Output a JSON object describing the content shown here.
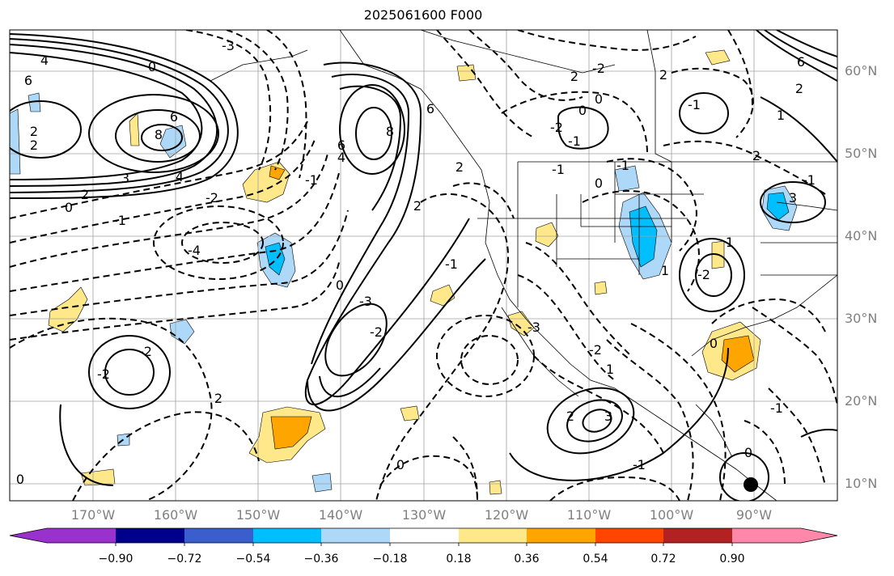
{
  "title": "2025061600 F000",
  "lat_labels": [
    "60°N",
    "50°N",
    "40°N",
    "30°N",
    "20°N",
    "10°N"
  ],
  "lon_labels": [
    "170°W",
    "160°W",
    "150°W",
    "140°W",
    "130°W",
    "120°W",
    "110°W",
    "100°W",
    "90°W"
  ],
  "colorbar": {
    "ticks": [
      "−0.90",
      "−0.72",
      "−0.54",
      "−0.36",
      "−0.18",
      "0.18",
      "0.36",
      "0.54",
      "0.72",
      "0.90"
    ],
    "colors": [
      "#9932cc",
      "#00008b",
      "#3a5fcd",
      "#00bfff",
      "#add8f8",
      "#ffffff",
      "#ffe88a",
      "#ffa500",
      "#ff4500",
      "#b22222",
      "#ff88aa"
    ]
  },
  "contour_labels": [
    "4",
    "6",
    "2",
    "2",
    "-3",
    "0",
    "6",
    "8",
    "3",
    "4",
    "2",
    "0",
    "-2",
    "-1",
    "-4",
    "-2",
    "6",
    "8",
    "6",
    "-1",
    "-2",
    "4",
    "2",
    "0",
    "-3",
    "-2",
    "-1",
    "0",
    "2",
    "-1",
    "0",
    "-1",
    "0",
    "-1",
    "1",
    "-2",
    "-2",
    "-3",
    "0",
    "-1",
    "1",
    "-2",
    "1",
    "2",
    "3",
    "2",
    "2",
    "-1",
    "0",
    "3",
    "-1",
    "1",
    "-1",
    "0",
    "6",
    "0",
    "2",
    "2",
    "-2",
    "2"
  ]
}
